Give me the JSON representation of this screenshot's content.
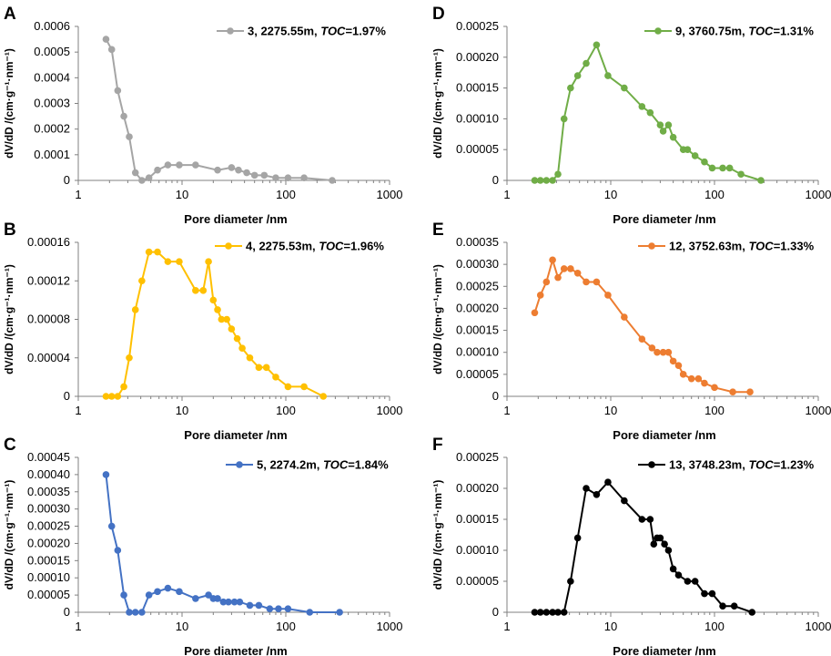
{
  "chart_data": [
    {
      "type": "line",
      "panel": "A",
      "color": "#a5a5a5",
      "xlabel": "Pore diameter /nm",
      "ylabel": "dV/dD /(cm·g⁻¹·nm⁻¹)",
      "xscale": "log",
      "xlim": [
        1,
        1000
      ],
      "ylim": [
        0,
        0.0006
      ],
      "xticks": [
        "1",
        "10",
        "100",
        "1000"
      ],
      "yticks": [
        "0",
        "0.0001",
        "0.0002",
        "0.0003",
        "0.0004",
        "0.0005",
        "0.0006"
      ],
      "legend": {
        "label": "3, 2275.55m, ",
        "italic": "TOC",
        "value": "=1.97%"
      },
      "series": [
        {
          "name": "3, 2275.55m, TOC=1.97%",
          "x": [
            1.85,
            2.1,
            2.4,
            2.75,
            3.1,
            3.55,
            4.1,
            4.8,
            5.8,
            7.3,
            9.4,
            13.5,
            22,
            30,
            35,
            42,
            50,
            62,
            80,
            105,
            150,
            280
          ],
          "y": [
            0.00055,
            0.00051,
            0.00035,
            0.00025,
            0.00017,
            3e-05,
            0.0,
            1e-05,
            4e-05,
            6e-05,
            6e-05,
            6e-05,
            4e-05,
            5e-05,
            4e-05,
            3e-05,
            2e-05,
            2e-05,
            1e-05,
            1e-05,
            1e-05,
            0.0
          ]
        }
      ]
    },
    {
      "type": "line",
      "panel": "B",
      "color": "#ffc000",
      "xlabel": "Pore diameter /nm",
      "ylabel": "dV/dD /(cm·g⁻¹·nm⁻¹)",
      "xscale": "log",
      "xlim": [
        1,
        1000
      ],
      "ylim": [
        0,
        0.00016
      ],
      "xticks": [
        "1",
        "10",
        "100",
        "1000"
      ],
      "yticks": [
        "0",
        "0.00004",
        "0.00008",
        "0.00012",
        "0.00016"
      ],
      "legend": {
        "label": "4, 2275.53m, ",
        "italic": "TOC",
        "value": "=1.96%"
      },
      "series": [
        {
          "name": "4, 2275.53m, TOC=1.96%",
          "x": [
            1.85,
            2.1,
            2.4,
            2.75,
            3.1,
            3.55,
            4.1,
            4.8,
            5.8,
            7.3,
            9.4,
            13.5,
            16,
            18,
            20,
            22,
            24,
            27,
            30,
            34,
            38,
            45,
            55,
            65,
            80,
            105,
            150,
            230
          ],
          "y": [
            0.0,
            0.0,
            0.0,
            1e-05,
            4e-05,
            9e-05,
            0.00012,
            0.00015,
            0.00015,
            0.00014,
            0.00014,
            0.00011,
            0.00011,
            0.00014,
            0.0001,
            9e-05,
            8e-05,
            8e-05,
            7e-05,
            6e-05,
            5e-05,
            4e-05,
            3e-05,
            3e-05,
            2e-05,
            1e-05,
            1e-05,
            0.0
          ]
        }
      ]
    },
    {
      "type": "line",
      "panel": "C",
      "color": "#4472c4",
      "xlabel": "Pore diameter /nm",
      "ylabel": "dV/dD /(cm·g⁻¹·nm⁻¹)",
      "xscale": "log",
      "xlim": [
        1,
        1000
      ],
      "ylim": [
        0,
        0.00045
      ],
      "xticks": [
        "1",
        "10",
        "100",
        "1000"
      ],
      "yticks": [
        "0",
        "0.00005",
        "0.00010",
        "0.00015",
        "0.00020",
        "0.00025",
        "0.00030",
        "0.00035",
        "0.00040",
        "0.00045"
      ],
      "legend": {
        "label": "5, 2274.2m, ",
        "italic": "TOC",
        "value": "=1.84%"
      },
      "series": [
        {
          "name": "5, 2274.2m, TOC=1.84%",
          "x": [
            1.85,
            2.1,
            2.4,
            2.75,
            3.1,
            3.55,
            4.1,
            4.8,
            5.8,
            7.3,
            9.4,
            13.5,
            18,
            20,
            22,
            25,
            28,
            32,
            36,
            45,
            55,
            70,
            85,
            105,
            170,
            330
          ],
          "y": [
            0.0004,
            0.00025,
            0.00018,
            5e-05,
            0.0,
            0.0,
            0.0,
            5e-05,
            6e-05,
            7e-05,
            6e-05,
            4e-05,
            5e-05,
            4e-05,
            4e-05,
            3e-05,
            3e-05,
            3e-05,
            3e-05,
            2e-05,
            2e-05,
            1e-05,
            1e-05,
            1e-05,
            0.0,
            0.0
          ]
        }
      ]
    },
    {
      "type": "line",
      "panel": "D",
      "color": "#70ad47",
      "xlabel": "Pore diameter /nm",
      "ylabel": "dV/dD /(cm·g⁻¹·nm⁻¹)",
      "xscale": "log",
      "xlim": [
        1,
        1000
      ],
      "ylim": [
        0,
        0.00025
      ],
      "xticks": [
        "1",
        "10",
        "100",
        "1000"
      ],
      "yticks": [
        "0",
        "0.00005",
        "0.00010",
        "0.00015",
        "0.00020",
        "0.00025"
      ],
      "legend": {
        "label": "9, 3760.75m, ",
        "italic": "TOC",
        "value": "=1.31%"
      },
      "series": [
        {
          "name": "9, 3760.75m, TOC=1.31%",
          "x": [
            1.85,
            2.1,
            2.4,
            2.75,
            3.1,
            3.55,
            4.1,
            4.8,
            5.8,
            7.3,
            9.4,
            13.5,
            20,
            24,
            30,
            32,
            36,
            40,
            50,
            55,
            65,
            80,
            95,
            120,
            140,
            180,
            280
          ],
          "y": [
            0.0,
            0.0,
            0.0,
            0.0,
            1e-05,
            0.0001,
            0.00015,
            0.00017,
            0.00019,
            0.00022,
            0.00017,
            0.00015,
            0.00012,
            0.00011,
            9e-05,
            8e-05,
            9e-05,
            7e-05,
            5e-05,
            5e-05,
            4e-05,
            3e-05,
            2e-05,
            2e-05,
            2e-05,
            1e-05,
            0.0
          ]
        }
      ]
    },
    {
      "type": "line",
      "panel": "E",
      "color": "#ed7d31",
      "xlabel": "Pore diameter /nm",
      "ylabel": "dV/dD /(cm·g⁻¹·nm⁻¹)",
      "xscale": "log",
      "xlim": [
        1,
        1000
      ],
      "ylim": [
        0,
        0.00035
      ],
      "xticks": [
        "1",
        "10",
        "100",
        "1000"
      ],
      "yticks": [
        "0",
        "0.00005",
        "0.00010",
        "0.00015",
        "0.00020",
        "0.00025",
        "0.00030",
        "0.00035"
      ],
      "legend": {
        "label": "12, 3752.63m, ",
        "italic": "TOC",
        "value": "=1.33%"
      },
      "series": [
        {
          "name": "12, 3752.63m, TOC=1.33%",
          "x": [
            1.85,
            2.1,
            2.4,
            2.75,
            3.1,
            3.55,
            4.1,
            4.8,
            5.8,
            7.3,
            9.4,
            13.5,
            20,
            25,
            28,
            32,
            36,
            40,
            45,
            50,
            60,
            70,
            80,
            100,
            150,
            220
          ],
          "y": [
            0.00019,
            0.00023,
            0.00026,
            0.00031,
            0.00027,
            0.00029,
            0.00029,
            0.00028,
            0.00026,
            0.00026,
            0.00023,
            0.00018,
            0.00013,
            0.00011,
            0.0001,
            0.0001,
            0.0001,
            8e-05,
            7e-05,
            5e-05,
            4e-05,
            4e-05,
            3e-05,
            2e-05,
            1e-05,
            1e-05
          ]
        }
      ]
    },
    {
      "type": "line",
      "panel": "F",
      "color": "#000000",
      "xlabel": "Pore diameter /nm",
      "ylabel": "dV/dD /(cm·g⁻¹·nm⁻¹)",
      "xscale": "log",
      "xlim": [
        1,
        1000
      ],
      "ylim": [
        0,
        0.00025
      ],
      "xticks": [
        "1",
        "10",
        "100",
        "1000"
      ],
      "yticks": [
        "0",
        "0.00005",
        "0.00010",
        "0.00015",
        "0.00020",
        "0.00025"
      ],
      "legend": {
        "label": "13, 3748.23m, ",
        "italic": "TOC",
        "value": "=1.23%"
      },
      "series": [
        {
          "name": "13, 3748.23m, TOC=1.23%",
          "x": [
            1.85,
            2.1,
            2.4,
            2.75,
            3.1,
            3.55,
            4.1,
            4.8,
            5.8,
            7.3,
            9.4,
            13.5,
            20,
            24,
            26,
            28,
            30,
            33,
            36,
            40,
            45,
            55,
            65,
            80,
            95,
            120,
            155,
            230
          ],
          "y": [
            0.0,
            0.0,
            0.0,
            0.0,
            0.0,
            0.0,
            5e-05,
            0.00012,
            0.0002,
            0.00019,
            0.00021,
            0.00018,
            0.00015,
            0.00015,
            0.00011,
            0.00012,
            0.00012,
            0.00011,
            0.0001,
            7e-05,
            6e-05,
            5e-05,
            5e-05,
            3e-05,
            3e-05,
            1e-05,
            1e-05,
            0.0
          ]
        }
      ]
    }
  ]
}
